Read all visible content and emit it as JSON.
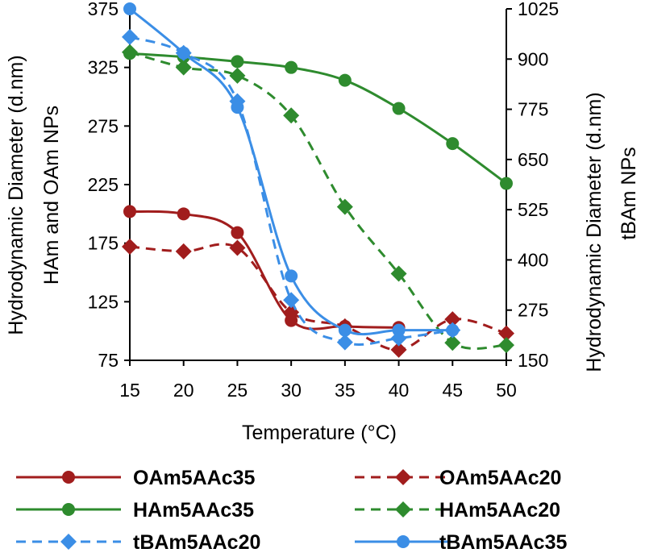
{
  "chart_data": {
    "type": "line",
    "title": "",
    "xlabel": "Temperature (°C)",
    "ylabel_left_line1": "Hydrodynamic Diameter (d.nm)",
    "ylabel_left_line2": "HAm and OAm NPs",
    "ylabel_right_line1": "Hydrodynamic Diameter (d.nm)",
    "ylabel_right_line2": "tBAm NPs",
    "xlim": [
      15,
      50
    ],
    "ylim_left": [
      75,
      375
    ],
    "ylim_right": [
      150,
      1025
    ],
    "x_ticks": [
      "15",
      "20",
      "25",
      "30",
      "35",
      "40",
      "45",
      "50"
    ],
    "y_left_ticks": [
      "75",
      "125",
      "175",
      "225",
      "275",
      "325",
      "375"
    ],
    "y_right_ticks": [
      "150",
      "275",
      "400",
      "525",
      "650",
      "775",
      "900",
      "1025"
    ],
    "series": [
      {
        "name": "OAm5AAc35",
        "axis": "left",
        "color": "#a11d1d",
        "dash": false,
        "marker": "circle",
        "x": [
          15,
          20,
          25,
          30,
          35,
          40
        ],
        "y": [
          202,
          200,
          184,
          109,
          104,
          103
        ]
      },
      {
        "name": "OAm5AAc20",
        "axis": "left",
        "color": "#a11d1d",
        "dash": true,
        "marker": "diamond",
        "x": [
          15,
          20,
          25,
          30,
          35,
          40,
          45,
          50
        ],
        "y": [
          172,
          168,
          171,
          116,
          104,
          84,
          110,
          98
        ]
      },
      {
        "name": "HAm5AAc35",
        "axis": "left",
        "color": "#2e8b2e",
        "dash": false,
        "marker": "circle",
        "x": [
          15,
          20,
          25,
          30,
          35,
          40,
          45,
          50
        ],
        "y": [
          337,
          334,
          330,
          325,
          314,
          290,
          260,
          226
        ]
      },
      {
        "name": "HAm5AAc20",
        "axis": "left",
        "color": "#2e8b2e",
        "dash": true,
        "marker": "diamond",
        "x": [
          15,
          20,
          25,
          30,
          35,
          40,
          45,
          50
        ],
        "y": [
          338,
          325,
          318,
          284,
          206,
          149,
          90,
          88
        ]
      },
      {
        "name": "tBAm5AAc20",
        "axis": "right",
        "color": "#3b8ee6",
        "dash": true,
        "marker": "diamond",
        "x": [
          15,
          20,
          25,
          30,
          35,
          40,
          45
        ],
        "y": [
          955,
          915,
          795,
          300,
          195,
          205,
          225
        ]
      },
      {
        "name": "tBAm5AAc35",
        "axis": "right",
        "color": "#3b8ee6",
        "dash": false,
        "marker": "circle",
        "x": [
          15,
          20,
          25,
          30,
          35,
          40,
          45
        ],
        "y": [
          1025,
          915,
          780,
          360,
          225,
          225,
          225
        ]
      }
    ],
    "legend": [
      {
        "name": "OAm5AAc35",
        "color": "#a11d1d",
        "dash": false,
        "marker": "circle"
      },
      {
        "name": "OAm5AAc20",
        "color": "#a11d1d",
        "dash": true,
        "marker": "diamond"
      },
      {
        "name": "HAm5AAc35",
        "color": "#2e8b2e",
        "dash": false,
        "marker": "circle"
      },
      {
        "name": "HAm5AAc20",
        "color": "#2e8b2e",
        "dash": true,
        "marker": "diamond"
      },
      {
        "name": "tBAm5AAc20",
        "color": "#3b8ee6",
        "dash": true,
        "marker": "diamond"
      },
      {
        "name": "tBAm5AAc35",
        "color": "#3b8ee6",
        "dash": false,
        "marker": "circle"
      }
    ],
    "legend_position": "bottom",
    "grid": false
  }
}
